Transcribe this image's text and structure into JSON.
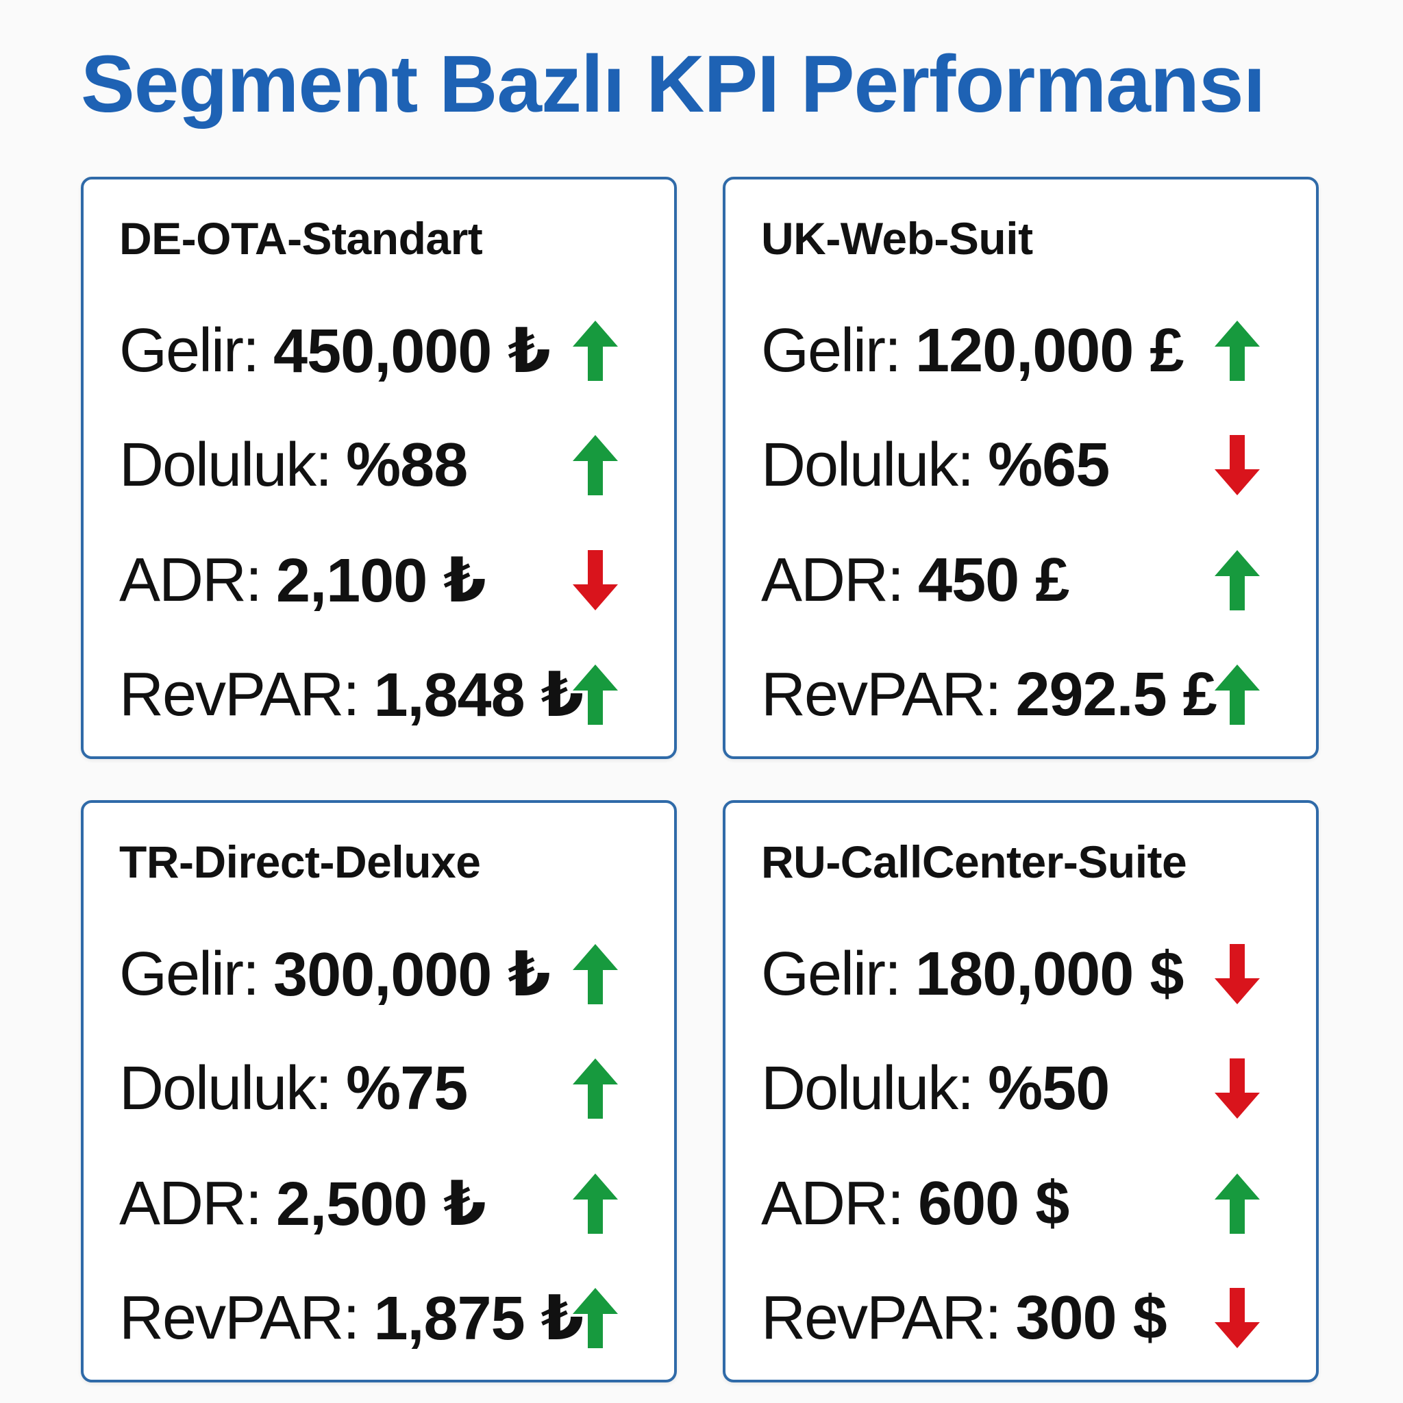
{
  "page": {
    "title": "Segment Bazlı KPI Performansı"
  },
  "colors": {
    "title": "#1e62b4",
    "card_border": "#2f6aa8",
    "trend_up": "#179a3e",
    "trend_down": "#d9141c"
  },
  "cards": [
    {
      "segment": "DE-OTA-Standart",
      "kpis": [
        {
          "label": "Gelir:",
          "value": "450,000 ₺",
          "trend": "up",
          "icon": "arrow-up-icon"
        },
        {
          "label": "Doluluk:",
          "value": "%88",
          "trend": "up",
          "icon": "arrow-up-icon"
        },
        {
          "label": "ADR:",
          "value": "2,100 ₺",
          "trend": "down",
          "icon": "arrow-down-icon"
        },
        {
          "label": "RevPAR:",
          "value": "1,848 ₺",
          "trend": "up",
          "icon": "arrow-up-icon"
        }
      ]
    },
    {
      "segment": "UK-Web-Suit",
      "kpis": [
        {
          "label": "Gelir:",
          "value": "120,000 £",
          "trend": "up",
          "icon": "arrow-up-icon"
        },
        {
          "label": "Doluluk:",
          "value": "%65",
          "trend": "down",
          "icon": "arrow-down-icon"
        },
        {
          "label": "ADR:",
          "value": "450 £",
          "trend": "up",
          "icon": "arrow-up-icon"
        },
        {
          "label": "RevPAR:",
          "value": "292.5 £",
          "trend": "up",
          "icon": "arrow-up-icon"
        }
      ]
    },
    {
      "segment": "TR-Direct-Deluxe",
      "kpis": [
        {
          "label": "Gelir:",
          "value": "300,000 ₺",
          "trend": "up",
          "icon": "arrow-up-icon"
        },
        {
          "label": "Doluluk:",
          "value": "%75",
          "trend": "up",
          "icon": "arrow-up-icon"
        },
        {
          "label": "ADR:",
          "value": "2,500 ₺",
          "trend": "up",
          "icon": "arrow-up-icon"
        },
        {
          "label": "RevPAR:",
          "value": "1,875 ₺",
          "trend": "up",
          "icon": "arrow-up-icon"
        }
      ]
    },
    {
      "segment": "RU-CallCenter-Suite",
      "kpis": [
        {
          "label": "Gelir:",
          "value": "180,000 $",
          "trend": "down",
          "icon": "arrow-down-icon"
        },
        {
          "label": "Doluluk:",
          "value": "%50",
          "trend": "down",
          "icon": "arrow-down-icon"
        },
        {
          "label": "ADR:",
          "value": "600 $",
          "trend": "up",
          "icon": "arrow-up-icon"
        },
        {
          "label": "RevPAR:",
          "value": "300 $",
          "trend": "down",
          "icon": "arrow-down-icon"
        }
      ]
    }
  ]
}
